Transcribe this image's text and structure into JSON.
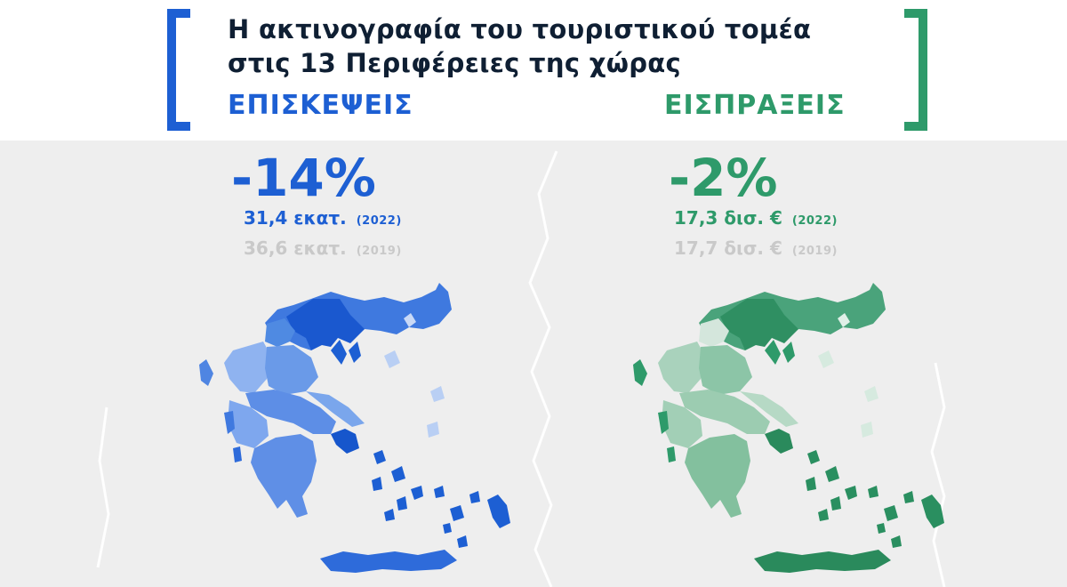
{
  "header": {
    "title_line1": "Η ακτινογραφία του τουριστικού τομέα",
    "title_line2": "στις 13 Περιφέρειες της χώρας",
    "visits_label": "ΕΠΙΣΚΕΨΕΙΣ",
    "receipts_label": "ΕΙΣΠΡΑΞΕΙΣ"
  },
  "visits": {
    "change": "-14%",
    "current_value": "31,4 εκατ.",
    "current_year": "(2022)",
    "previous_value": "36,6 εκατ.",
    "previous_year": "(2019)"
  },
  "receipts": {
    "change": "-2%",
    "current_value": "17,3 δισ. €",
    "current_year": "(2022)",
    "previous_value": "17,7 δισ. €",
    "previous_year": "(2019)"
  },
  "colors": {
    "visits_accent": "#1d5fd3",
    "receipts_accent": "#2e9a6a",
    "title": "#0f1f33",
    "muted": "#c9c9c9",
    "background": "#eeeeee"
  },
  "maps": {
    "visits_map_icon": "greece-regions-map-blue",
    "receipts_map_icon": "greece-regions-map-green"
  }
}
